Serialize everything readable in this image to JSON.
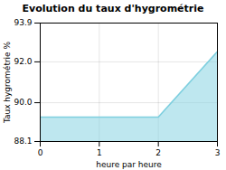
{
  "chart_data": {
    "type": "area",
    "title": "Evolution du taux d'hygrométrie",
    "xlabel": "heure par heure",
    "ylabel": "Taux hygrométrie %",
    "x": [
      0,
      1,
      2,
      3
    ],
    "values": [
      89.3,
      89.3,
      89.3,
      92.5
    ],
    "color": "#7ecfdf",
    "xlim": [
      0,
      3
    ],
    "ylim": [
      88.1,
      93.9
    ],
    "xticks": [
      0,
      1,
      2,
      3
    ],
    "yticks": [
      88.1,
      {
        "value": 90,
        "label": "90.0"
      },
      {
        "value": 92,
        "label": "92.0"
      },
      93.9
    ],
    "grid": true
  }
}
